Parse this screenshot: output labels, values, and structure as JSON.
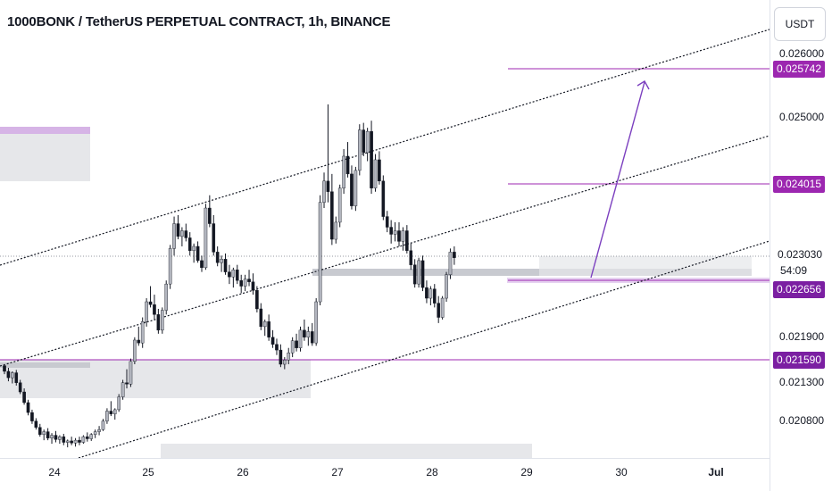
{
  "header": {
    "title": "1000BONK / TetherUS PERPETUAL CONTRACT, 1h, BINANCE"
  },
  "currency_button": {
    "label": "USDT"
  },
  "colors": {
    "candle": "#b2b5be",
    "candle_wick": "#131722",
    "purple_level": "#9c27b0",
    "channel_line": "#131722",
    "arrow": "#7b3fbf",
    "zone_gray": "#c8cad0",
    "zone_light": "#e6e7ea",
    "zone_purple": "#d6b4e6"
  },
  "chart_data": {
    "type": "candlestick",
    "title": "1000BONK / TetherUS PERPETUAL CONTRACT, 1h, BINANCE",
    "x_axis_labels": [
      "24",
      "25",
      "26",
      "27",
      "28",
      "29",
      "30",
      "Jul"
    ],
    "y_axis_labels": [
      "0.026000",
      "0.025000",
      "0.021900",
      "0.021300",
      "0.020800"
    ],
    "ylim": [
      0.0202,
      0.02665
    ],
    "grid": false,
    "current_price": "0.023030",
    "countdown": "54:09",
    "horizontal_levels": [
      {
        "price": "0.025742",
        "style": "purple-line"
      },
      {
        "price": "0.024015",
        "style": "purple-line"
      },
      {
        "price": "0.022656",
        "style": "purple-line"
      },
      {
        "price": "0.021590",
        "style": "purple-line"
      }
    ],
    "trend_channel": "three parallel dotted rising lines",
    "projection_arrow": "from 0.02276 up to 0.02565",
    "candles_description": "hourly candles from Jun 23 to Jun 29",
    "candles": [
      [
        0.0215,
        0.02152,
        0.02138,
        0.02142
      ],
      [
        0.02142,
        0.02147,
        0.02128,
        0.02133
      ],
      [
        0.02133,
        0.02142,
        0.02125,
        0.0214
      ],
      [
        0.0214,
        0.02144,
        0.02122,
        0.02126
      ],
      [
        0.02126,
        0.0213,
        0.0211,
        0.02113
      ],
      [
        0.02113,
        0.02118,
        0.02095,
        0.02098
      ],
      [
        0.02098,
        0.02102,
        0.0208,
        0.02084
      ],
      [
        0.02084,
        0.02088,
        0.02068,
        0.02072
      ],
      [
        0.02072,
        0.02076,
        0.0206,
        0.02063
      ],
      [
        0.02063,
        0.02068,
        0.0205,
        0.02053
      ],
      [
        0.02053,
        0.0206,
        0.02045,
        0.02057
      ],
      [
        0.02057,
        0.02062,
        0.02045,
        0.02048
      ],
      [
        0.02048,
        0.02055,
        0.0204,
        0.02052
      ],
      [
        0.02052,
        0.02058,
        0.02042,
        0.02046
      ],
      [
        0.02046,
        0.02052,
        0.0204,
        0.0205
      ],
      [
        0.0205,
        0.02054,
        0.02038,
        0.02042
      ],
      [
        0.02042,
        0.02046,
        0.02035,
        0.02044
      ],
      [
        0.02044,
        0.0205,
        0.02038,
        0.02041
      ],
      [
        0.02041,
        0.02048,
        0.02036,
        0.02045
      ],
      [
        0.02045,
        0.0205,
        0.02038,
        0.02042
      ],
      [
        0.02042,
        0.02052,
        0.0204,
        0.0205
      ],
      [
        0.0205,
        0.02056,
        0.02043,
        0.02047
      ],
      [
        0.02047,
        0.02055,
        0.02044,
        0.02053
      ],
      [
        0.02053,
        0.0206,
        0.02048,
        0.02057
      ],
      [
        0.02057,
        0.02065,
        0.02052,
        0.0206
      ],
      [
        0.0206,
        0.02075,
        0.02058,
        0.02072
      ],
      [
        0.02072,
        0.0209,
        0.02068,
        0.02086
      ],
      [
        0.02086,
        0.021,
        0.02079,
        0.02082
      ],
      [
        0.02082,
        0.0209,
        0.02074,
        0.02088
      ],
      [
        0.02088,
        0.0211,
        0.02085,
        0.02106
      ],
      [
        0.02106,
        0.0213,
        0.02102,
        0.02126
      ],
      [
        0.02126,
        0.02145,
        0.02118,
        0.02124
      ],
      [
        0.02124,
        0.0216,
        0.0212,
        0.02156
      ],
      [
        0.02156,
        0.0219,
        0.02152,
        0.02186
      ],
      [
        0.02186,
        0.02205,
        0.02178,
        0.02182
      ],
      [
        0.02182,
        0.02218,
        0.02175,
        0.02212
      ],
      [
        0.02212,
        0.02245,
        0.02205,
        0.0224
      ],
      [
        0.0224,
        0.02262,
        0.02232,
        0.02236
      ],
      [
        0.02236,
        0.0225,
        0.02215,
        0.02222
      ],
      [
        0.02222,
        0.0223,
        0.02195,
        0.022
      ],
      [
        0.022,
        0.02232,
        0.02195,
        0.02228
      ],
      [
        0.02228,
        0.0227,
        0.02222,
        0.02265
      ],
      [
        0.02265,
        0.0232,
        0.02258,
        0.02315
      ],
      [
        0.02315,
        0.0236,
        0.02305,
        0.0235
      ],
      [
        0.0235,
        0.02362,
        0.02328,
        0.02332
      ],
      [
        0.02332,
        0.02345,
        0.02318,
        0.0234
      ],
      [
        0.0234,
        0.0235,
        0.02325,
        0.0233
      ],
      [
        0.0233,
        0.02338,
        0.02305,
        0.02312
      ],
      [
        0.02312,
        0.02322,
        0.02295,
        0.02318
      ],
      [
        0.02318,
        0.02325,
        0.02295,
        0.02298
      ],
      [
        0.02298,
        0.02305,
        0.02282,
        0.02288
      ],
      [
        0.02288,
        0.02378,
        0.02285,
        0.02372
      ],
      [
        0.02372,
        0.0239,
        0.02345,
        0.0235
      ],
      [
        0.0235,
        0.02362,
        0.02305,
        0.0231
      ],
      [
        0.0231,
        0.02318,
        0.0229,
        0.02295
      ],
      [
        0.02295,
        0.02305,
        0.02282,
        0.023
      ],
      [
        0.023,
        0.02308,
        0.02278,
        0.02282
      ],
      [
        0.02282,
        0.02292,
        0.02265,
        0.02275
      ],
      [
        0.02275,
        0.02288,
        0.0226,
        0.02285
      ],
      [
        0.02285,
        0.02292,
        0.02265,
        0.0227
      ],
      [
        0.0227,
        0.02278,
        0.02252,
        0.02262
      ],
      [
        0.02262,
        0.02278,
        0.02255,
        0.02272
      ],
      [
        0.02272,
        0.02285,
        0.02262,
        0.02268
      ],
      [
        0.02268,
        0.0228,
        0.0225,
        0.02256
      ],
      [
        0.02256,
        0.02262,
        0.02225,
        0.0223
      ],
      [
        0.0223,
        0.02238,
        0.022,
        0.02205
      ],
      [
        0.02205,
        0.02215,
        0.02192,
        0.02212
      ],
      [
        0.02212,
        0.02222,
        0.02185,
        0.0219
      ],
      [
        0.0219,
        0.022,
        0.02175,
        0.0218
      ],
      [
        0.0218,
        0.02188,
        0.02165,
        0.02172
      ],
      [
        0.02172,
        0.0218,
        0.02148,
        0.02152
      ],
      [
        0.02152,
        0.02162,
        0.02145,
        0.02158
      ],
      [
        0.02158,
        0.02175,
        0.02152,
        0.02168
      ],
      [
        0.02168,
        0.0219,
        0.02162,
        0.02185
      ],
      [
        0.02185,
        0.02195,
        0.0217,
        0.02175
      ],
      [
        0.02175,
        0.02205,
        0.0217,
        0.022
      ],
      [
        0.022,
        0.02215,
        0.02185,
        0.0219
      ],
      [
        0.0219,
        0.02205,
        0.02178,
        0.02198
      ],
      [
        0.02198,
        0.0221,
        0.02178,
        0.02182
      ],
      [
        0.02182,
        0.02245,
        0.02178,
        0.0224
      ],
      [
        0.0224,
        0.0239,
        0.02235,
        0.0238
      ],
      [
        0.0238,
        0.02422,
        0.02372,
        0.0241
      ],
      [
        0.0241,
        0.02518,
        0.0238,
        0.02395
      ],
      [
        0.02395,
        0.0242,
        0.0232,
        0.02328
      ],
      [
        0.02328,
        0.0236,
        0.02322,
        0.02352
      ],
      [
        0.02352,
        0.02405,
        0.02345,
        0.024
      ],
      [
        0.024,
        0.02455,
        0.02392,
        0.02445
      ],
      [
        0.02445,
        0.02465,
        0.02415,
        0.0242
      ],
      [
        0.0242,
        0.02432,
        0.0237,
        0.02375
      ],
      [
        0.02375,
        0.0243,
        0.02368,
        0.02425
      ],
      [
        0.02425,
        0.0249,
        0.02418,
        0.02482
      ],
      [
        0.02482,
        0.02492,
        0.02445,
        0.0245
      ],
      [
        0.0245,
        0.02485,
        0.02438,
        0.0248
      ],
      [
        0.0248,
        0.02495,
        0.02392,
        0.024
      ],
      [
        0.024,
        0.02448,
        0.02395,
        0.0244
      ],
      [
        0.0244,
        0.02452,
        0.02405,
        0.0241
      ],
      [
        0.0241,
        0.02418,
        0.02355,
        0.0236
      ],
      [
        0.0236,
        0.02368,
        0.02338,
        0.02345
      ],
      [
        0.02345,
        0.02355,
        0.02322,
        0.02335
      ],
      [
        0.02335,
        0.02352,
        0.02325,
        0.0234
      ],
      [
        0.0234,
        0.02352,
        0.02318,
        0.02325
      ],
      [
        0.02325,
        0.02345,
        0.02312,
        0.0234
      ],
      [
        0.0234,
        0.02348,
        0.02308,
        0.02312
      ],
      [
        0.02312,
        0.02322,
        0.02285,
        0.02292
      ],
      [
        0.02292,
        0.023,
        0.0226,
        0.02265
      ],
      [
        0.02265,
        0.02302,
        0.0226,
        0.02298
      ],
      [
        0.02298,
        0.02305,
        0.02255,
        0.0226
      ],
      [
        0.0226,
        0.0227,
        0.02238,
        0.02245
      ],
      [
        0.02245,
        0.02262,
        0.02235,
        0.02258
      ],
      [
        0.02258,
        0.02265,
        0.02232,
        0.02238
      ],
      [
        0.02238,
        0.02248,
        0.0221,
        0.02218
      ],
      [
        0.02218,
        0.02248,
        0.02215,
        0.02245
      ],
      [
        0.02245,
        0.02282,
        0.0224,
        0.02278
      ],
      [
        0.02278,
        0.02315,
        0.02272,
        0.0231
      ],
      [
        0.0231,
        0.02318,
        0.02292,
        0.02302
      ]
    ]
  }
}
